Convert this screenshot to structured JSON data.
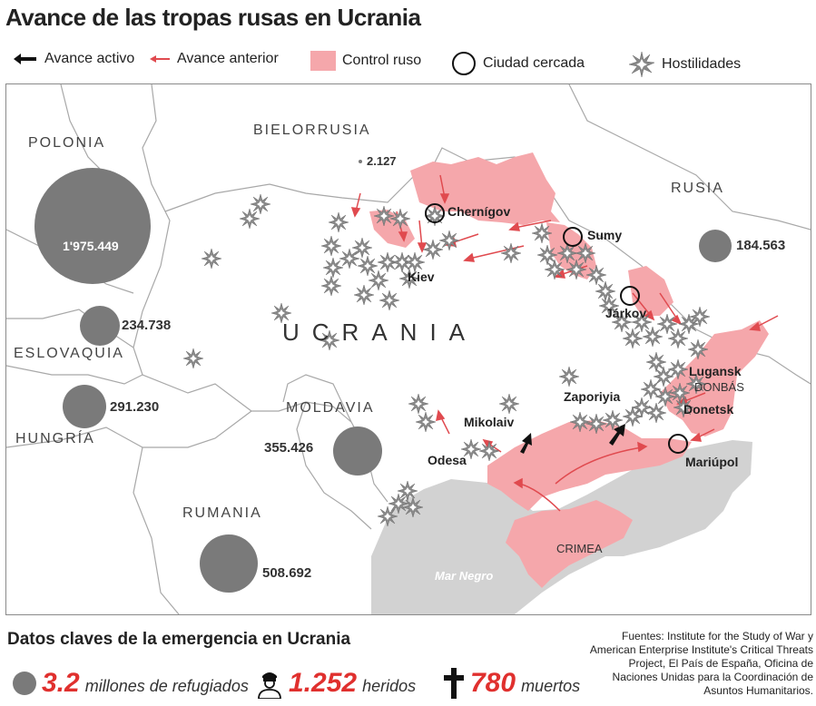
{
  "title": "Avance de las tropas rusas en Ucrania",
  "legend": {
    "active_advance": "Avance activo",
    "previous_advance": "Avance anterior",
    "russian_control": "Control ruso",
    "besieged_city": "Ciudad cercada",
    "hostilities": "Hostilidades"
  },
  "countries": {
    "poland": "POLONIA",
    "belarus": "BIELORRUSIA",
    "russia": "RUSIA",
    "slovakia": "ESLOVAQUIA",
    "hungary": "HUNGRÍA",
    "moldova": "MOLDAVIA",
    "romania": "RUMANIA",
    "ukraine": "UCRANIA"
  },
  "regions": {
    "donbas": "DONBÁS",
    "crimea": "CRIMEA",
    "black_sea": "Mar Negro"
  },
  "cities": {
    "chernigov": "Chernígov",
    "kiev": "Kiev",
    "sumy": "Sumy",
    "jarkov": "Járkov",
    "lugansk": "Lugansk",
    "donetsk": "Donetsk",
    "mariupol": "Mariúpol",
    "zaporiyia": "Zaporiyia",
    "mikolaiv": "Mikolaiv",
    "odesa": "Odesa"
  },
  "refugees": {
    "poland": "1'975.449",
    "belarus": "2.127",
    "russia": "184.563",
    "slovakia": "234.738",
    "hungary": "291.230",
    "moldova": "355.426",
    "romania": "508.692"
  },
  "key_facts": {
    "title": "Datos claves de la emergencia en Ucrania",
    "refugees_value": "3.2",
    "refugees_label": "millones de refugiados",
    "wounded_value": "1.252",
    "wounded_label": "heridos",
    "deaths_value": "780",
    "deaths_label": "muertos"
  },
  "sources": "Fuentes: Institute for the Study of War y American Enterprise Institute's Critical Threats Project, El País de España, Oficina de Naciones Unidas para la Coordinación de Asuntos Humanitarios.",
  "colors": {
    "control": "#f5a7ab",
    "arrow_red": "#e04a4f",
    "bubble": "#7a7a7a",
    "accent": "#e0302e",
    "sea": "#d2d2d2"
  }
}
